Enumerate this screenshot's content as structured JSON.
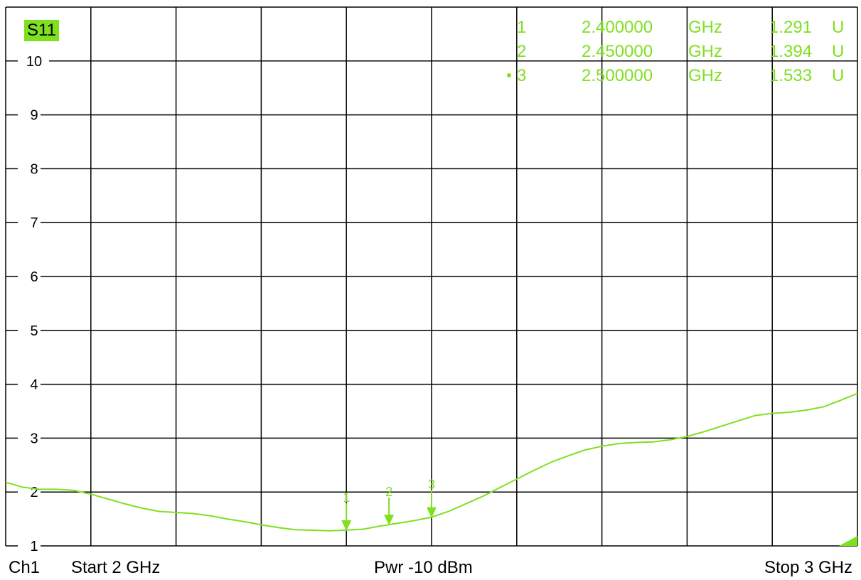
{
  "trace_label": "S11",
  "footer": {
    "channel": "Ch1",
    "start": "Start  2 GHz",
    "power": "Pwr  -10 dBm",
    "stop": "Stop  3 GHz"
  },
  "colors": {
    "trace": "#7fe020",
    "grid": "#000000",
    "background": "#ffffff"
  },
  "markers": [
    {
      "id": "1",
      "freq": "2.400000",
      "freq_unit": "GHz",
      "value": "1.291",
      "value_unit": "U",
      "active": false
    },
    {
      "id": "2",
      "freq": "2.450000",
      "freq_unit": "GHz",
      "value": "1.394",
      "value_unit": "U",
      "active": false
    },
    {
      "id": "3",
      "freq": "2.500000",
      "freq_unit": "GHz",
      "value": "1.533",
      "value_unit": "U",
      "active": true
    }
  ],
  "chart_data": {
    "type": "line",
    "xlim": [
      2.0,
      3.0
    ],
    "ylim": [
      1,
      11
    ],
    "x_divisions": 10,
    "y_ticks": [
      1,
      2,
      3,
      4,
      5,
      6,
      7,
      8,
      9,
      10
    ],
    "grid": true,
    "series": [
      {
        "x": [
          2.0,
          2.02,
          2.04,
          2.06,
          2.08,
          2.1,
          2.12,
          2.14,
          2.16,
          2.18,
          2.2,
          2.22,
          2.24,
          2.26,
          2.28,
          2.3,
          2.32,
          2.34,
          2.36,
          2.38,
          2.4,
          2.42,
          2.44,
          2.46,
          2.48,
          2.5,
          2.52,
          2.54,
          2.56,
          2.58,
          2.6,
          2.62,
          2.64,
          2.66,
          2.68,
          2.7,
          2.72,
          2.74,
          2.76,
          2.78,
          2.8,
          2.82,
          2.84,
          2.86,
          2.88,
          2.9,
          2.92,
          2.94,
          2.96,
          2.98,
          3.0
        ],
        "y": [
          2.18,
          2.09,
          2.05,
          2.05,
          2.03,
          1.96,
          1.87,
          1.78,
          1.7,
          1.64,
          1.62,
          1.6,
          1.56,
          1.5,
          1.45,
          1.39,
          1.34,
          1.3,
          1.29,
          1.28,
          1.291,
          1.31,
          1.37,
          1.42,
          1.47,
          1.533,
          1.64,
          1.78,
          1.92,
          2.08,
          2.24,
          2.4,
          2.55,
          2.67,
          2.78,
          2.85,
          2.9,
          2.92,
          2.93,
          2.97,
          3.03,
          3.12,
          3.22,
          3.32,
          3.42,
          3.46,
          3.48,
          3.52,
          3.58,
          3.7,
          3.83
        ]
      }
    ]
  }
}
